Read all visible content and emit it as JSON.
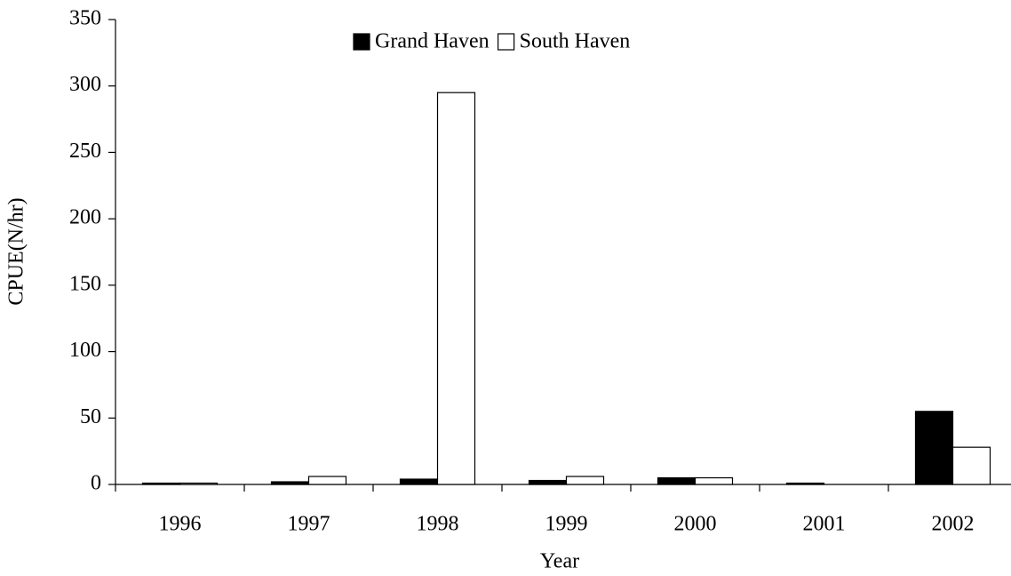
{
  "chart_data": {
    "type": "bar",
    "categories": [
      "1996",
      "1997",
      "1998",
      "1999",
      "2000",
      "2001",
      "2002"
    ],
    "series": [
      {
        "name": "Grand Haven",
        "color": "#000000",
        "values": [
          1,
          2,
          4,
          3,
          5,
          1,
          55
        ]
      },
      {
        "name": "South Haven",
        "color": "#ffffff",
        "values": [
          1,
          6,
          295,
          6,
          5,
          0,
          28
        ]
      }
    ],
    "ylim": [
      0,
      350
    ],
    "yticks": [
      0,
      50,
      100,
      150,
      200,
      250,
      300,
      350
    ],
    "ylabel": "CPUE(N/hr)",
    "xlabel": "Year",
    "legend": "upper center"
  }
}
